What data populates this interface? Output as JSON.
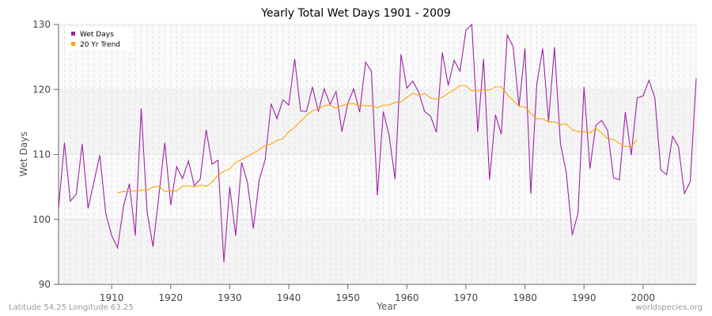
{
  "chart_data": {
    "type": "line",
    "title": "Yearly Total Wet Days 1901 - 2009",
    "xlabel": "Year",
    "ylabel": "Wet Days",
    "xlim": [
      1901,
      2009
    ],
    "ylim": [
      90,
      130
    ],
    "x_ticks": [
      1910,
      1920,
      1930,
      1940,
      1950,
      1960,
      1970,
      1980,
      1990,
      2000
    ],
    "y_ticks": [
      90,
      100,
      110,
      120,
      130
    ],
    "grid": true,
    "legend_position": "top-left",
    "series": [
      {
        "name": "Wet Days",
        "color": "#a020a8",
        "start_year": 1901,
        "values": [
          101.8,
          111.8,
          102.8,
          103.9,
          111.6,
          101.7,
          105.8,
          109.9,
          100.9,
          97.5,
          95.6,
          102.0,
          105.5,
          97.5,
          117.1,
          101.2,
          95.8,
          103.7,
          111.8,
          102.2,
          108.1,
          106.3,
          109.0,
          105.2,
          106.2,
          113.8,
          108.5,
          109.1,
          93.4,
          105.0,
          97.5,
          108.8,
          105.7,
          98.6,
          106.1,
          109.2,
          117.8,
          115.5,
          118.4,
          117.6,
          124.7,
          116.7,
          116.6,
          120.4,
          116.6,
          120.1,
          117.7,
          119.7,
          113.5,
          117.9,
          120.1,
          116.5,
          124.2,
          122.8,
          103.7,
          116.6,
          112.9,
          106.2,
          125.4,
          120.2,
          121.3,
          119.6,
          116.6,
          115.9,
          113.4,
          125.7,
          120.6,
          124.5,
          122.8,
          129.1,
          130.0,
          113.5,
          124.7,
          106.1,
          116.1,
          113.1,
          128.4,
          126.6,
          117.4,
          126.3,
          103.9,
          120.8,
          126.3,
          115.1,
          126.5,
          111.7,
          107.2,
          97.6,
          101.0,
          120.4,
          107.8,
          114.5,
          115.2,
          113.7,
          106.4,
          106.1,
          116.5,
          109.9,
          118.7,
          119.0,
          121.4,
          118.7,
          107.6,
          106.9,
          112.8,
          111.2,
          104.0,
          105.8,
          121.7
        ]
      },
      {
        "name": "20 Yr Trend",
        "color": "#ffa500",
        "start_year": 1911,
        "values": [
          104.1,
          104.3,
          104.3,
          104.4,
          104.5,
          104.5,
          105.0,
          105.1,
          104.3,
          104.4,
          104.4,
          105.1,
          105.2,
          105.0,
          105.3,
          105.1,
          105.7,
          106.8,
          107.4,
          107.8,
          108.8,
          109.2,
          109.7,
          110.2,
          110.7,
          111.4,
          111.6,
          112.2,
          112.4,
          113.5,
          114.2,
          115.1,
          116.0,
          116.7,
          117.0,
          117.5,
          117.6,
          117.1,
          117.5,
          117.8,
          117.8,
          117.5,
          117.5,
          117.5,
          117.2,
          117.6,
          117.6,
          118.0,
          118.1,
          118.8,
          119.4,
          119.1,
          119.4,
          118.7,
          118.5,
          118.8,
          119.4,
          119.9,
          120.6,
          120.6,
          119.8,
          119.8,
          120.0,
          119.9,
          120.4,
          120.4,
          119.2,
          118.3,
          117.4,
          117.3,
          116.3,
          115.5,
          115.5,
          115.0,
          115.0,
          114.6,
          114.7,
          113.8,
          113.5,
          113.5,
          113.3,
          114.0,
          113.3,
          112.4,
          112.3,
          111.7,
          111.2,
          111.2,
          112.3
        ]
      }
    ]
  },
  "footer": {
    "location": "Latitude 54.25 Longitude 63.25",
    "source": "worldspecies.org"
  }
}
